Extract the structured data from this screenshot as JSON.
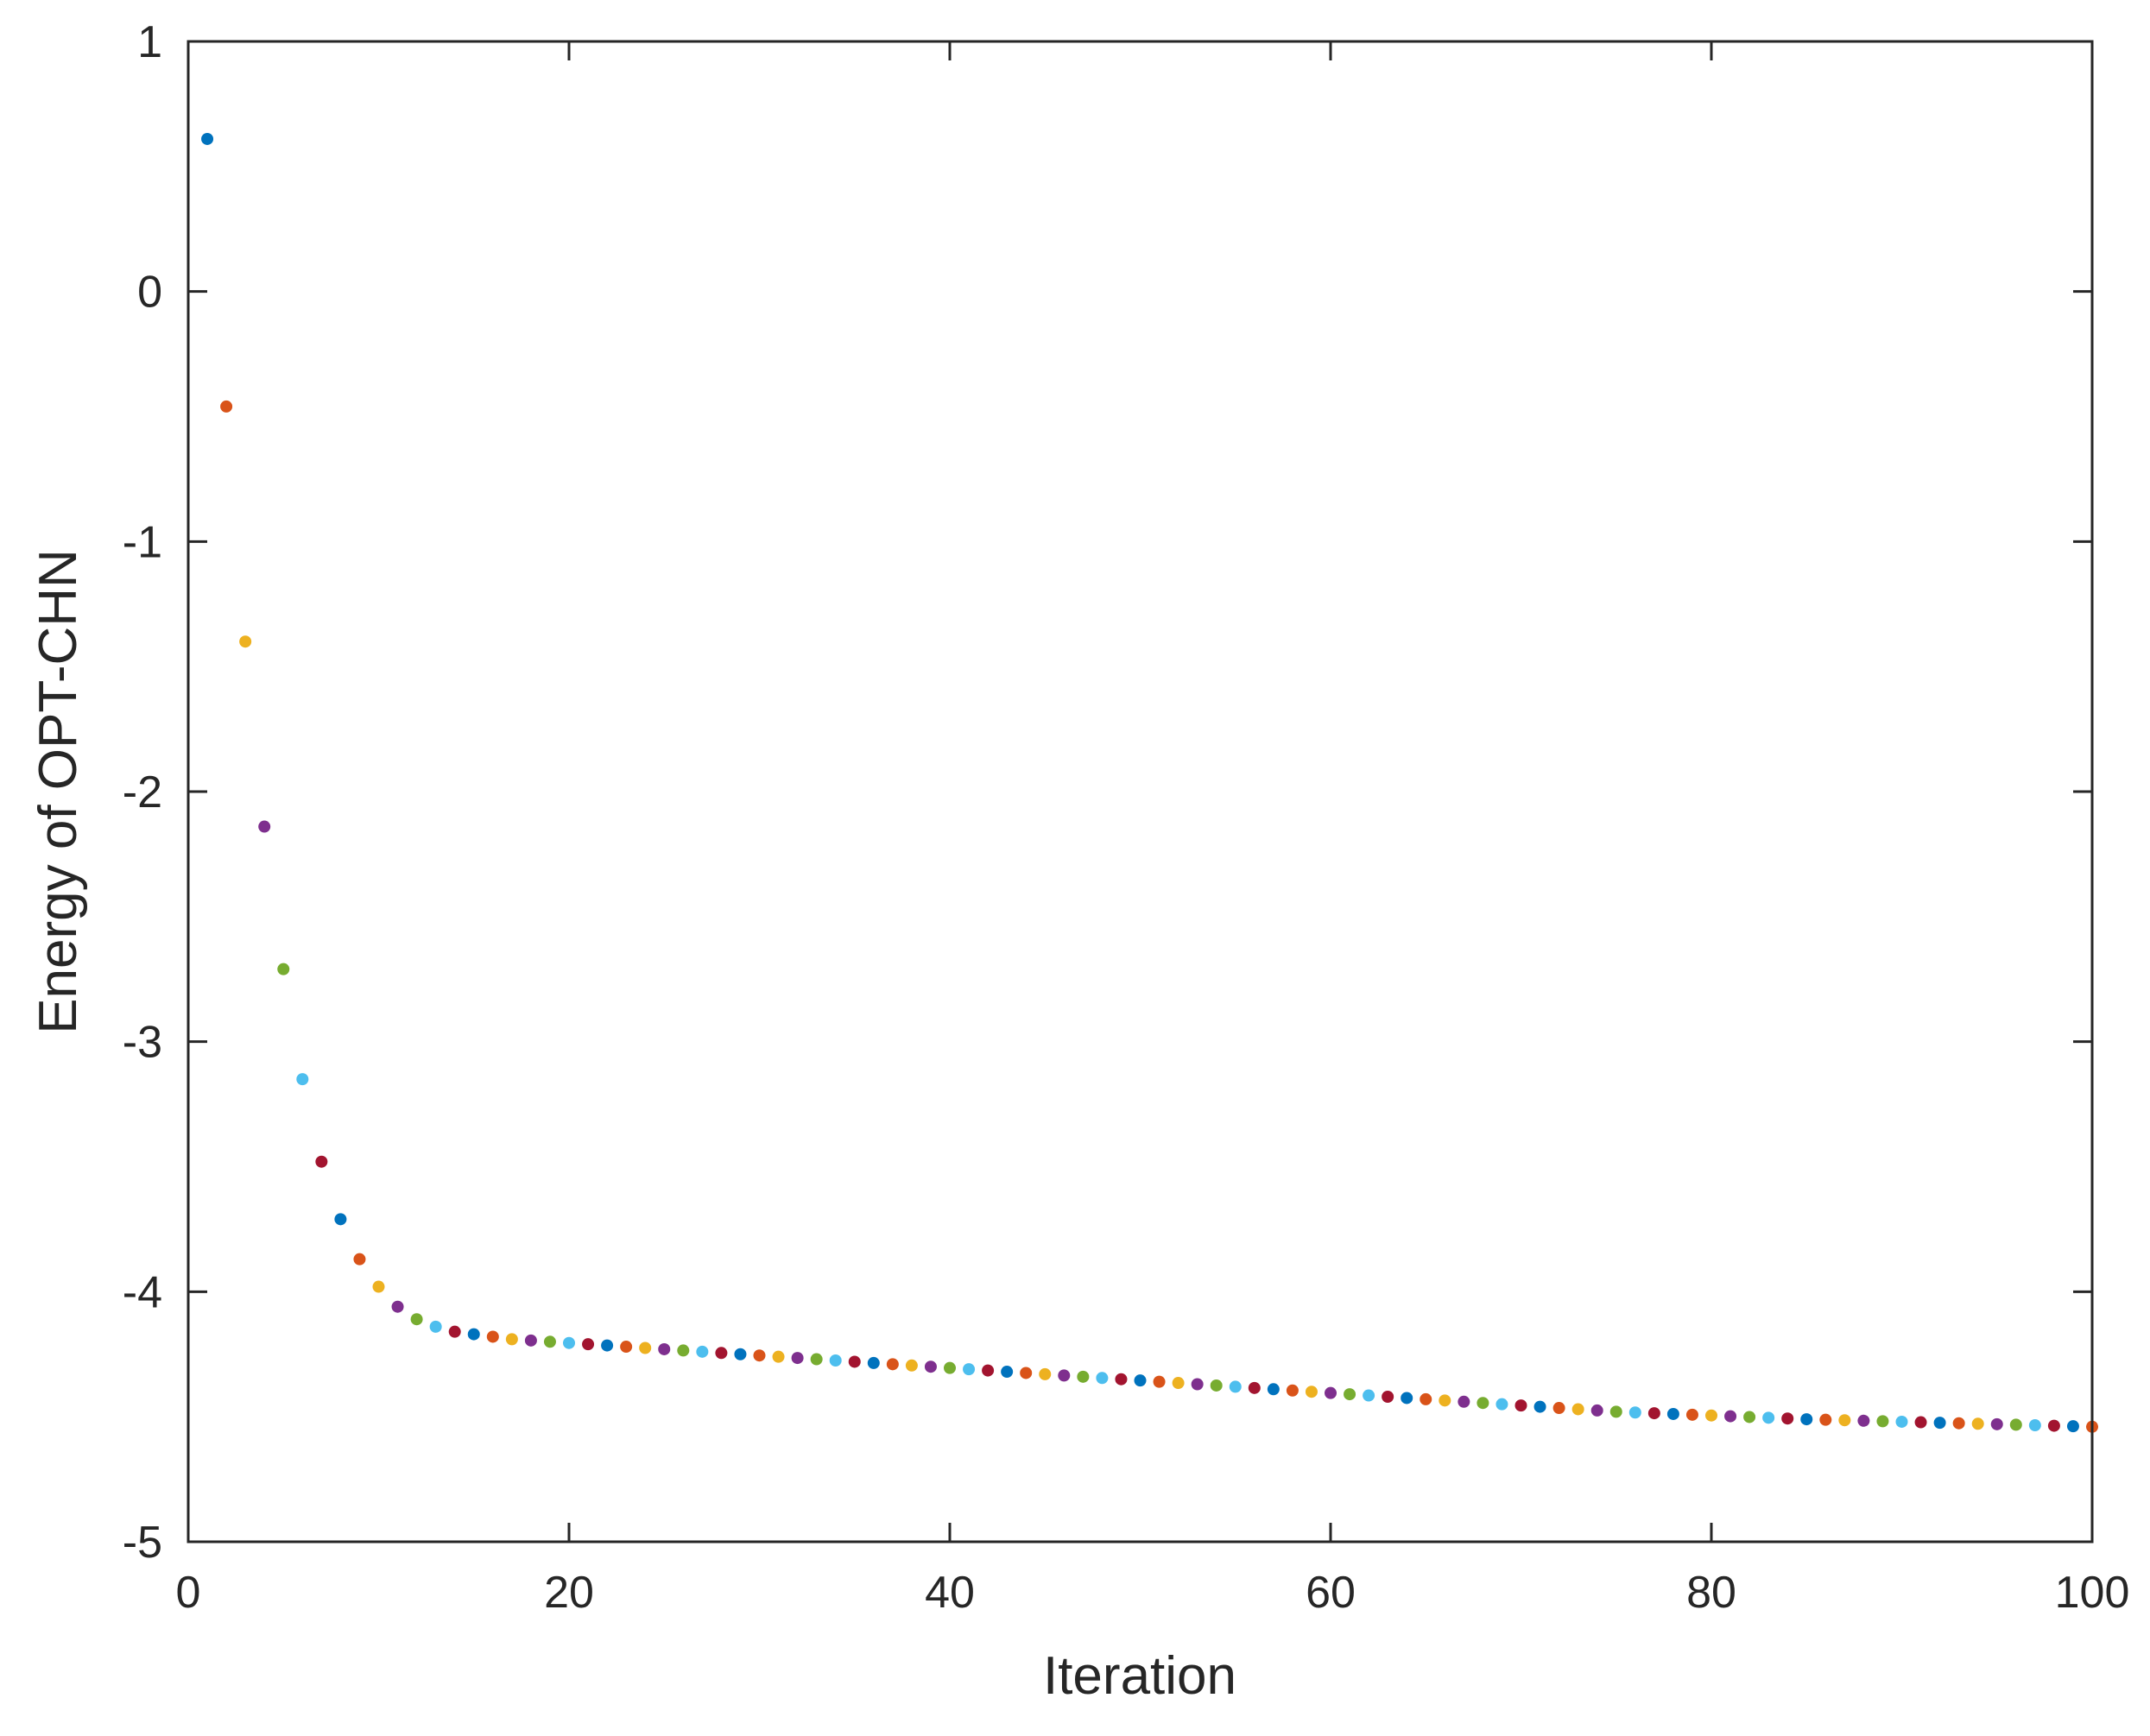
{
  "chart_data": {
    "type": "scatter",
    "title": "",
    "xlabel": "Iteration",
    "ylabel": "Energy of OPT-CHN",
    "xlim": [
      0,
      100
    ],
    "ylim": [
      -5,
      1
    ],
    "xticks": [
      0,
      20,
      40,
      60,
      80,
      100
    ],
    "xtick_labels": [
      "0",
      "20",
      "40",
      "60",
      "80",
      "100"
    ],
    "yticks": [
      -5,
      -4,
      -3,
      -2,
      -1,
      0,
      1
    ],
    "ytick_labels": [
      "-5",
      "-4",
      "-3",
      "-2",
      "-1",
      "0",
      "1"
    ],
    "grid": false,
    "legend": "none",
    "point_colors": [
      "#0072BD",
      "#D95319",
      "#EDB120",
      "#7E2F8E",
      "#77AC30",
      "#4DBEEE",
      "#A2142F"
    ],
    "x": [
      1,
      2,
      3,
      4,
      5,
      6,
      7,
      8,
      9,
      10,
      11,
      12,
      13,
      14,
      15,
      16,
      17,
      18,
      19,
      20,
      21,
      22,
      23,
      24,
      25,
      26,
      27,
      28,
      29,
      30,
      31,
      32,
      33,
      34,
      35,
      36,
      37,
      38,
      39,
      40,
      41,
      42,
      43,
      44,
      45,
      46,
      47,
      48,
      49,
      50,
      51,
      52,
      53,
      54,
      55,
      56,
      57,
      58,
      59,
      60,
      61,
      62,
      63,
      64,
      65,
      66,
      67,
      68,
      69,
      70,
      71,
      72,
      73,
      74,
      75,
      76,
      77,
      78,
      79,
      80,
      81,
      82,
      83,
      84,
      85,
      86,
      87,
      88,
      89,
      90,
      91,
      92,
      93,
      94,
      95,
      96,
      97,
      98,
      99,
      100
    ],
    "y": [
      0.61,
      -0.46,
      -1.4,
      -2.14,
      -2.71,
      -3.15,
      -3.48,
      -3.71,
      -3.87,
      -3.98,
      -4.06,
      -4.11,
      -4.14,
      -4.16,
      -4.17,
      -4.18,
      -4.19,
      -4.195,
      -4.2,
      -4.205,
      -4.21,
      -4.215,
      -4.22,
      -4.225,
      -4.23,
      -4.235,
      -4.24,
      -4.245,
      -4.25,
      -4.255,
      -4.26,
      -4.265,
      -4.27,
      -4.275,
      -4.28,
      -4.285,
      -4.29,
      -4.295,
      -4.3,
      -4.305,
      -4.31,
      -4.315,
      -4.32,
      -4.325,
      -4.33,
      -4.335,
      -4.34,
      -4.345,
      -4.35,
      -4.355,
      -4.36,
      -4.365,
      -4.37,
      -4.375,
      -4.38,
      -4.385,
      -4.39,
      -4.395,
      -4.4,
      -4.405,
      -4.41,
      -4.415,
      -4.42,
      -4.425,
      -4.43,
      -4.435,
      -4.44,
      -4.445,
      -4.45,
      -4.455,
      -4.46,
      -4.465,
      -4.47,
      -4.475,
      -4.48,
      -4.483,
      -4.486,
      -4.489,
      -4.492,
      -4.495,
      -4.498,
      -4.501,
      -4.504,
      -4.507,
      -4.51,
      -4.512,
      -4.514,
      -4.516,
      -4.518,
      -4.52,
      -4.522,
      -4.524,
      -4.526,
      -4.528,
      -4.53,
      -4.532,
      -4.534,
      -4.536,
      -4.538,
      -4.54
    ]
  }
}
